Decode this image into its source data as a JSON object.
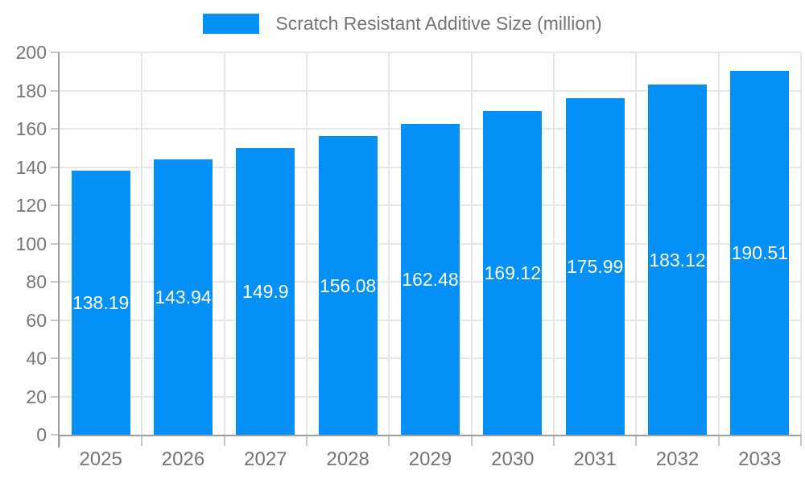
{
  "chart_data": {
    "type": "bar",
    "title": "Scratch Resistant Additive Size (million)",
    "legend": {
      "label": "Scratch Resistant Additive Size (million)",
      "position": "top-center"
    },
    "categories": [
      "2025",
      "2026",
      "2027",
      "2028",
      "2029",
      "2030",
      "2031",
      "2032",
      "2033"
    ],
    "values": [
      138.19,
      143.94,
      149.9,
      156.08,
      162.48,
      169.12,
      175.99,
      183.12,
      190.51
    ],
    "value_labels": [
      "138.19",
      "143.94",
      "149.9",
      "156.08",
      "162.48",
      "169.12",
      "175.99",
      "183.12",
      "190.51"
    ],
    "xlabel": "",
    "ylabel": "",
    "ylim": [
      0,
      200
    ],
    "ytick_step": 20,
    "grid": true,
    "colors": {
      "bar": "#0590f8",
      "axis": "#9e9e9e",
      "tick": "#c6c6c6",
      "grid": "#e6e6e6",
      "text": "#757575",
      "value_label": "#ffffff"
    }
  }
}
